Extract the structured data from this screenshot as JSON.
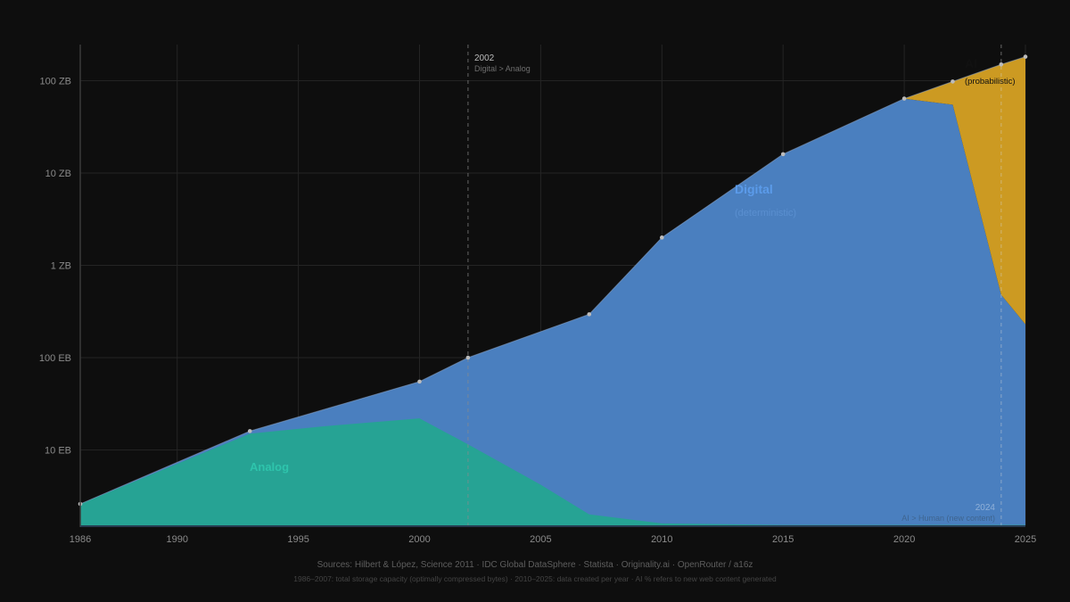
{
  "chart_data": {
    "type": "area",
    "stacked": true,
    "yscale": "log",
    "title": "",
    "xlabel": "",
    "ylabel": "",
    "xlim": [
      1986,
      2025
    ],
    "ylim_eb": [
      1.54,
      250000
    ],
    "x_ticks": [
      1986,
      1990,
      1995,
      2000,
      2005,
      2010,
      2015,
      2020,
      2025
    ],
    "y_ticks": [
      {
        "label": "10 EB",
        "value_eb": 10
      },
      {
        "label": "100 EB",
        "value_eb": 100
      },
      {
        "label": "1 ZB",
        "value_eb": 1000
      },
      {
        "label": "10 ZB",
        "value_eb": 10000
      },
      {
        "label": "100 ZB",
        "value_eb": 100000
      }
    ],
    "grid": true,
    "series": [
      {
        "name": "Analog",
        "color": "#26a394",
        "label_color": "#2ec4ac",
        "points_eb": [
          [
            1986,
            2.6
          ],
          [
            1993,
            15.0
          ],
          [
            1996,
            18.0
          ],
          [
            2000,
            22.0
          ],
          [
            2002,
            11.5
          ],
          [
            2005,
            4.2
          ],
          [
            2007,
            2.0
          ],
          [
            2010,
            1.6
          ],
          [
            2015,
            1.54
          ],
          [
            2025,
            1.54
          ]
        ]
      },
      {
        "name": "Digital",
        "subtitle": "(deterministic)",
        "color": "#4a7fbf",
        "label_color": "#5b9bea",
        "total_points_eb": [
          [
            1986,
            2.6
          ],
          [
            1993,
            16.0
          ],
          [
            2000,
            55.0
          ],
          [
            2002,
            100.0
          ],
          [
            2007,
            295.0
          ],
          [
            2010,
            2000.0
          ],
          [
            2015,
            16000.0
          ],
          [
            2020,
            64000.0
          ],
          [
            2022,
            55000.0
          ],
          [
            2024,
            480.0
          ],
          [
            2025,
            230.0
          ]
        ]
      },
      {
        "name": "AI",
        "subtitle": "(probabilistic)",
        "color": "#cc9a22",
        "label_color": "#111111",
        "total_points_eb": [
          [
            2020,
            64000.0
          ],
          [
            2022,
            98000.0
          ],
          [
            2024,
            150000.0
          ],
          [
            2025,
            182000.0
          ]
        ]
      }
    ],
    "markers_years": [
      1986,
      1993,
      2000,
      2002,
      2007,
      2010,
      2015,
      2020,
      2022,
      2024,
      2025
    ],
    "annotations": [
      {
        "x": 2002,
        "title": "2002",
        "text": "Digital > Analog",
        "style": "dashed-vertical"
      },
      {
        "x": 2024,
        "title": "2024",
        "text": "AI > Human (new content)",
        "style": "dashed-vertical"
      }
    ]
  },
  "labels": {
    "analog": "Analog",
    "digital": "Digital",
    "digital_sub": "(deterministic)",
    "ai": "AI",
    "ai_sub": "(probabilistic)",
    "ann2002_year": "2002",
    "ann2002_text": "Digital > Analog",
    "ann2024_year": "2024",
    "ann2024_text": "AI > Human (new content)"
  },
  "footer": {
    "sources": "Sources: Hilbert & López, Science 2011 · IDC Global DataSphere · Statista · Originality.ai · OpenRouter / a16z",
    "note": "1986–2007: total storage capacity (optimally compressed bytes) · 2010–2025: data created per year · AI % refers to new web content generated"
  }
}
